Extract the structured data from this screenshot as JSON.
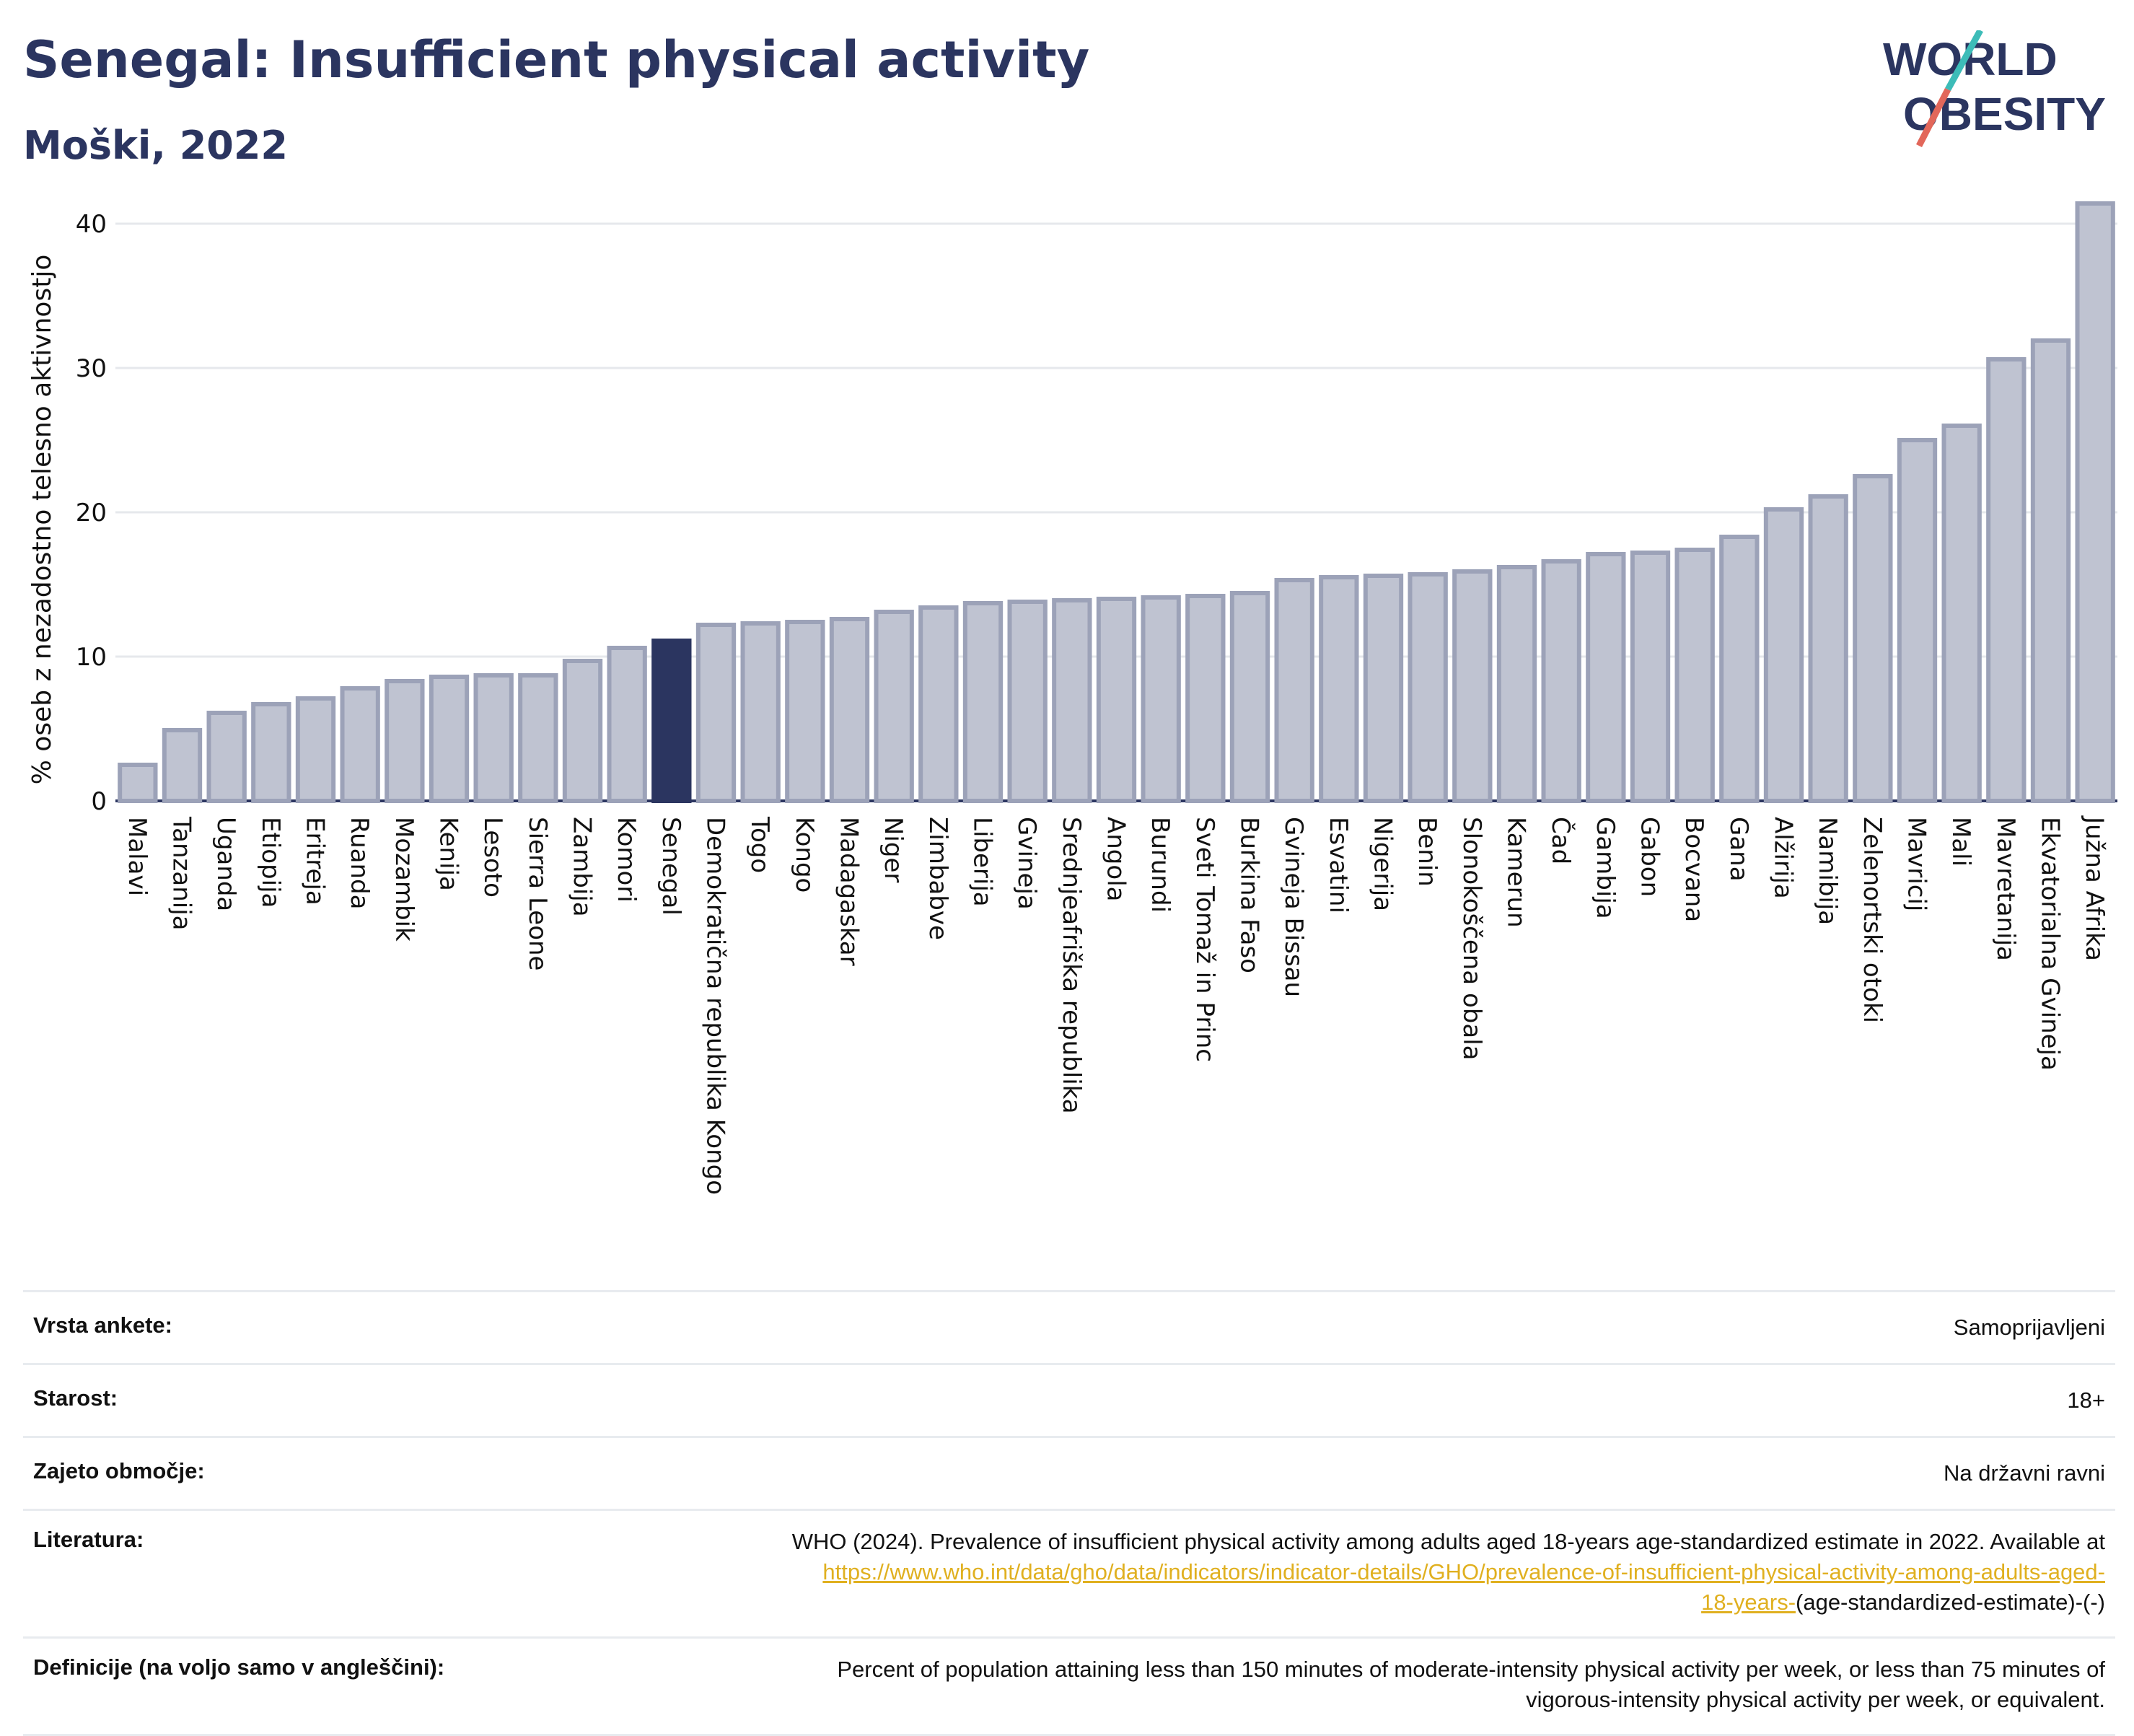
{
  "header": {
    "title": "Senegal: Insufficient physical activity",
    "subtitle": "Moški, 2022"
  },
  "logo": {
    "line1": "WORLD",
    "line2": "OBESITY",
    "accent_teal": "#3dbcb8",
    "accent_red": "#e2675a",
    "text_color": "#2b3560"
  },
  "colors": {
    "bar": "#bfc3d1",
    "bar_border": "#9ca2b8",
    "highlight": "#2b3560",
    "grid": "#e6e8ec"
  },
  "chart_data": {
    "type": "bar",
    "title": "Senegal: Insufficient physical activity",
    "ylabel": "% oseb z nezadostno telesno aktivnostjo",
    "xlabel": "",
    "ylim": [
      0,
      43
    ],
    "yticks": [
      0,
      10,
      20,
      30,
      40
    ],
    "highlight": "Senegal",
    "grid": "horizontal",
    "categories": [
      "Malavi",
      "Tanzanija",
      "Uganda",
      "Etiopija",
      "Eritreja",
      "Ruanda",
      "Mozambik",
      "Kenija",
      "Lesoto",
      "Sierra Leone",
      "Zambija",
      "Komori",
      "Senegal",
      "Demokratična republika Kongo",
      "Togo",
      "Kongo",
      "Madagaskar",
      "Niger",
      "Zimbabve",
      "Liberija",
      "Gvineja",
      "Srednjeafriška republika",
      "Angola",
      "Burundi",
      "Sveti Tomaž in Princ",
      "Burkina Faso",
      "Gvineja Bissau",
      "Esvatini",
      "Nigerija",
      "Benin",
      "Slonokoščena obala",
      "Kamerun",
      "Čad",
      "Gambija",
      "Gabon",
      "Bocvana",
      "Gana",
      "Alžirija",
      "Namibija",
      "Zelenortski otoki",
      "Mavricij",
      "Mali",
      "Mavretanija",
      "Ekvatorialna Gvineja",
      "Južna Afrika"
    ],
    "values": [
      2.5,
      4.9,
      6.1,
      6.7,
      7.1,
      7.8,
      8.3,
      8.6,
      8.7,
      8.7,
      9.7,
      10.6,
      11.1,
      12.2,
      12.3,
      12.4,
      12.6,
      13.1,
      13.4,
      13.7,
      13.8,
      13.9,
      14.0,
      14.1,
      14.2,
      14.4,
      15.3,
      15.5,
      15.6,
      15.7,
      15.9,
      16.2,
      16.6,
      17.1,
      17.2,
      17.4,
      18.3,
      20.2,
      21.1,
      22.5,
      25.0,
      26.0,
      30.6,
      31.9,
      41.4
    ]
  },
  "info": {
    "survey_label": "Vrsta ankete:",
    "survey_value": "Samoprijavljeni",
    "age_label": "Starost:",
    "age_value": "18+",
    "coverage_label": "Zajeto območje:",
    "coverage_value": "Na državni ravni",
    "reference_label": "Literatura:",
    "reference_text": "WHO (2024). Prevalence of insufficient physical activity among adults aged 18-years age-standardized estimate in 2022. Available at",
    "reference_link_1": "https://www.who.int/data/gho/data/indicators/indicator-details/GHO/prevalence-of-insufficient-physical-activity-among-adults-aged-",
    "reference_link_2": "18-years-",
    "reference_suffix": "(age-standardized-estimate)-(-)",
    "definition_label": "Definicije (na voljo samo v angleščini):",
    "definition_line_1": "Percent of population attaining less than 150 minutes of moderate-intensity physical activity per week, or less than 75 minutes of",
    "definition_line_2": "vigorous-intensity physical activity per week, or equivalent."
  }
}
